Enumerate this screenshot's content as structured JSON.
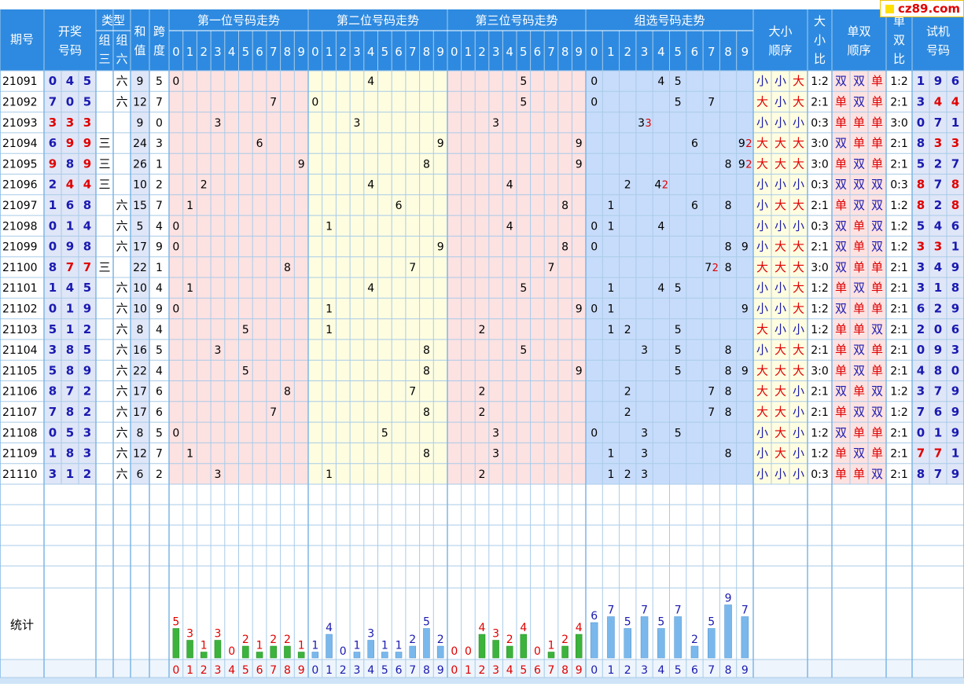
{
  "headers": {
    "issue": "期号",
    "draw": [
      "开奖",
      "号码"
    ],
    "type": "类型",
    "type_group3": [
      "组",
      "三"
    ],
    "type_group6": [
      "组",
      "六"
    ],
    "sum": [
      "和",
      "值"
    ],
    "span": [
      "跨",
      "度"
    ],
    "pos1": "第一位号码走势",
    "pos2": "第二位号码走势",
    "pos3": "第三位号码走势",
    "group": "组选号码走势",
    "bigsmall_order": [
      "大小",
      "顺序"
    ],
    "bigsmall_ratio": [
      "大",
      "小",
      "比"
    ],
    "oddeven_order": [
      "单双",
      "顺序"
    ],
    "oddeven_ratio": [
      "单",
      "双",
      "比"
    ],
    "test": [
      "试机",
      "号码"
    ],
    "digits": [
      "0",
      "1",
      "2",
      "3",
      "4",
      "5",
      "6",
      "7",
      "8",
      "9"
    ]
  },
  "stats_label": "统计",
  "watermark": "cz89.com",
  "colors": {
    "header_bg": "#2e8ae0",
    "draw_bg": "#dfe6f7",
    "pos1_bg": "#fde2e2",
    "pos2_bg": "#fefde0",
    "pos3_bg": "#fde2e2",
    "group_bg": "#c7dcfb",
    "ratio_bg": "#fffde0",
    "test_bg": "#dfe6f7",
    "blue_num": "#1a1ab0",
    "red_num": "#e00000",
    "grid": "#a8cbe8"
  },
  "rows": [
    {
      "issue": "21091",
      "draw": [
        "0",
        "4",
        "5"
      ],
      "type": "六",
      "sum": "9",
      "span": "5",
      "group": [
        {
          "d": "0",
          "c": "1"
        },
        {
          "d": "4",
          "c": "1"
        },
        {
          "d": "5",
          "c": "1"
        }
      ],
      "bs": [
        "小",
        "小",
        "大"
      ],
      "bs_ratio": "1:2",
      "oe": [
        "双",
        "双",
        "单"
      ],
      "oe_ratio": "1:2",
      "test": [
        "1",
        "9",
        "6"
      ]
    },
    {
      "issue": "21092",
      "draw": [
        "7",
        "0",
        "5"
      ],
      "type": "六",
      "sum": "12",
      "span": "7",
      "group": [
        {
          "d": "0",
          "c": "1"
        },
        {
          "d": "5",
          "c": "1"
        },
        {
          "d": "7",
          "c": "1"
        }
      ],
      "bs": [
        "大",
        "小",
        "大"
      ],
      "bs_ratio": "2:1",
      "oe": [
        "单",
        "双",
        "单"
      ],
      "oe_ratio": "2:1",
      "test": [
        "3",
        "4",
        "4"
      ]
    },
    {
      "issue": "21093",
      "draw": [
        "3",
        "3",
        "3"
      ],
      "type": "",
      "sum": "9",
      "span": "0",
      "group": [
        {
          "d": "3",
          "c": "3"
        }
      ],
      "bs": [
        "小",
        "小",
        "小"
      ],
      "bs_ratio": "0:3",
      "oe": [
        "单",
        "单",
        "单"
      ],
      "oe_ratio": "3:0",
      "test": [
        "0",
        "7",
        "1"
      ]
    },
    {
      "issue": "21094",
      "draw": [
        "6",
        "9",
        "9"
      ],
      "type": "三",
      "sum": "24",
      "span": "3",
      "group": [
        {
          "d": "6",
          "c": "1"
        },
        {
          "d": "9",
          "c": "2"
        }
      ],
      "bs": [
        "大",
        "大",
        "大"
      ],
      "bs_ratio": "3:0",
      "oe": [
        "双",
        "单",
        "单"
      ],
      "oe_ratio": "2:1",
      "test": [
        "8",
        "3",
        "3"
      ]
    },
    {
      "issue": "21095",
      "draw": [
        "9",
        "8",
        "9"
      ],
      "type": "三",
      "sum": "26",
      "span": "1",
      "group": [
        {
          "d": "8",
          "c": "1"
        },
        {
          "d": "9",
          "c": "2"
        }
      ],
      "bs": [
        "大",
        "大",
        "大"
      ],
      "bs_ratio": "3:0",
      "oe": [
        "单",
        "双",
        "单"
      ],
      "oe_ratio": "2:1",
      "test": [
        "5",
        "2",
        "7"
      ]
    },
    {
      "issue": "21096",
      "draw": [
        "2",
        "4",
        "4"
      ],
      "type": "三",
      "sum": "10",
      "span": "2",
      "group": [
        {
          "d": "2",
          "c": "1"
        },
        {
          "d": "4",
          "c": "2"
        }
      ],
      "bs": [
        "小",
        "小",
        "小"
      ],
      "bs_ratio": "0:3",
      "oe": [
        "双",
        "双",
        "双"
      ],
      "oe_ratio": "0:3",
      "test": [
        "8",
        "7",
        "8"
      ]
    },
    {
      "issue": "21097",
      "draw": [
        "1",
        "6",
        "8"
      ],
      "type": "六",
      "sum": "15",
      "span": "7",
      "group": [
        {
          "d": "1",
          "c": "1"
        },
        {
          "d": "6",
          "c": "1"
        },
        {
          "d": "8",
          "c": "1"
        }
      ],
      "bs": [
        "小",
        "大",
        "大"
      ],
      "bs_ratio": "2:1",
      "oe": [
        "单",
        "双",
        "双"
      ],
      "oe_ratio": "1:2",
      "test": [
        "8",
        "2",
        "8"
      ]
    },
    {
      "issue": "21098",
      "draw": [
        "0",
        "1",
        "4"
      ],
      "type": "六",
      "sum": "5",
      "span": "4",
      "group": [
        {
          "d": "0",
          "c": "1"
        },
        {
          "d": "1",
          "c": "1"
        },
        {
          "d": "4",
          "c": "1"
        }
      ],
      "bs": [
        "小",
        "小",
        "小"
      ],
      "bs_ratio": "0:3",
      "oe": [
        "双",
        "单",
        "双"
      ],
      "oe_ratio": "1:2",
      "test": [
        "5",
        "4",
        "6"
      ]
    },
    {
      "issue": "21099",
      "draw": [
        "0",
        "9",
        "8"
      ],
      "type": "六",
      "sum": "17",
      "span": "9",
      "group": [
        {
          "d": "0",
          "c": "1"
        },
        {
          "d": "8",
          "c": "1"
        },
        {
          "d": "9",
          "c": "1"
        }
      ],
      "bs": [
        "小",
        "大",
        "大"
      ],
      "bs_ratio": "2:1",
      "oe": [
        "双",
        "单",
        "双"
      ],
      "oe_ratio": "1:2",
      "test": [
        "3",
        "3",
        "1"
      ]
    },
    {
      "issue": "21100",
      "draw": [
        "8",
        "7",
        "7"
      ],
      "type": "三",
      "sum": "22",
      "span": "1",
      "group": [
        {
          "d": "7",
          "c": "2"
        },
        {
          "d": "8",
          "c": "1"
        }
      ],
      "bs": [
        "大",
        "大",
        "大"
      ],
      "bs_ratio": "3:0",
      "oe": [
        "双",
        "单",
        "单"
      ],
      "oe_ratio": "2:1",
      "test": [
        "3",
        "4",
        "9"
      ]
    },
    {
      "issue": "21101",
      "draw": [
        "1",
        "4",
        "5"
      ],
      "type": "六",
      "sum": "10",
      "span": "4",
      "group": [
        {
          "d": "1",
          "c": "1"
        },
        {
          "d": "4",
          "c": "1"
        },
        {
          "d": "5",
          "c": "1"
        }
      ],
      "bs": [
        "小",
        "小",
        "大"
      ],
      "bs_ratio": "1:2",
      "oe": [
        "单",
        "双",
        "单"
      ],
      "oe_ratio": "2:1",
      "test": [
        "3",
        "1",
        "8"
      ]
    },
    {
      "issue": "21102",
      "draw": [
        "0",
        "1",
        "9"
      ],
      "type": "六",
      "sum": "10",
      "span": "9",
      "group": [
        {
          "d": "0",
          "c": "1"
        },
        {
          "d": "1",
          "c": "1"
        },
        {
          "d": "9",
          "c": "1"
        }
      ],
      "bs": [
        "小",
        "小",
        "大"
      ],
      "bs_ratio": "1:2",
      "oe": [
        "双",
        "单",
        "单"
      ],
      "oe_ratio": "2:1",
      "test": [
        "6",
        "2",
        "9"
      ]
    },
    {
      "issue": "21103",
      "draw": [
        "5",
        "1",
        "2"
      ],
      "type": "六",
      "sum": "8",
      "span": "4",
      "group": [
        {
          "d": "1",
          "c": "1"
        },
        {
          "d": "2",
          "c": "1"
        },
        {
          "d": "5",
          "c": "1"
        }
      ],
      "bs": [
        "大",
        "小",
        "小"
      ],
      "bs_ratio": "1:2",
      "oe": [
        "单",
        "单",
        "双"
      ],
      "oe_ratio": "2:1",
      "test": [
        "2",
        "0",
        "6"
      ]
    },
    {
      "issue": "21104",
      "draw": [
        "3",
        "8",
        "5"
      ],
      "type": "六",
      "sum": "16",
      "span": "5",
      "group": [
        {
          "d": "3",
          "c": "1"
        },
        {
          "d": "5",
          "c": "1"
        },
        {
          "d": "8",
          "c": "1"
        }
      ],
      "bs": [
        "小",
        "大",
        "大"
      ],
      "bs_ratio": "2:1",
      "oe": [
        "单",
        "双",
        "单"
      ],
      "oe_ratio": "2:1",
      "test": [
        "0",
        "9",
        "3"
      ]
    },
    {
      "issue": "21105",
      "draw": [
        "5",
        "8",
        "9"
      ],
      "type": "六",
      "sum": "22",
      "span": "4",
      "group": [
        {
          "d": "5",
          "c": "1"
        },
        {
          "d": "8",
          "c": "1"
        },
        {
          "d": "9",
          "c": "1"
        }
      ],
      "bs": [
        "大",
        "大",
        "大"
      ],
      "bs_ratio": "3:0",
      "oe": [
        "单",
        "双",
        "单"
      ],
      "oe_ratio": "2:1",
      "test": [
        "4",
        "8",
        "0"
      ]
    },
    {
      "issue": "21106",
      "draw": [
        "8",
        "7",
        "2"
      ],
      "type": "六",
      "sum": "17",
      "span": "6",
      "group": [
        {
          "d": "2",
          "c": "1"
        },
        {
          "d": "7",
          "c": "1"
        },
        {
          "d": "8",
          "c": "1"
        }
      ],
      "bs": [
        "大",
        "大",
        "小"
      ],
      "bs_ratio": "2:1",
      "oe": [
        "双",
        "单",
        "双"
      ],
      "oe_ratio": "1:2",
      "test": [
        "3",
        "7",
        "9"
      ]
    },
    {
      "issue": "21107",
      "draw": [
        "7",
        "8",
        "2"
      ],
      "type": "六",
      "sum": "17",
      "span": "6",
      "group": [
        {
          "d": "2",
          "c": "1"
        },
        {
          "d": "7",
          "c": "1"
        },
        {
          "d": "8",
          "c": "1"
        }
      ],
      "bs": [
        "大",
        "大",
        "小"
      ],
      "bs_ratio": "2:1",
      "oe": [
        "单",
        "双",
        "双"
      ],
      "oe_ratio": "1:2",
      "test": [
        "7",
        "6",
        "9"
      ]
    },
    {
      "issue": "21108",
      "draw": [
        "0",
        "5",
        "3"
      ],
      "type": "六",
      "sum": "8",
      "span": "5",
      "group": [
        {
          "d": "0",
          "c": "1"
        },
        {
          "d": "3",
          "c": "1"
        },
        {
          "d": "5",
          "c": "1"
        }
      ],
      "bs": [
        "小",
        "大",
        "小"
      ],
      "bs_ratio": "1:2",
      "oe": [
        "双",
        "单",
        "单"
      ],
      "oe_ratio": "2:1",
      "test": [
        "0",
        "1",
        "9"
      ]
    },
    {
      "issue": "21109",
      "draw": [
        "1",
        "8",
        "3"
      ],
      "type": "六",
      "sum": "12",
      "span": "7",
      "group": [
        {
          "d": "1",
          "c": "1"
        },
        {
          "d": "3",
          "c": "1"
        },
        {
          "d": "8",
          "c": "1"
        }
      ],
      "bs": [
        "小",
        "大",
        "小"
      ],
      "bs_ratio": "1:2",
      "oe": [
        "单",
        "双",
        "单"
      ],
      "oe_ratio": "2:1",
      "test": [
        "7",
        "7",
        "1"
      ]
    },
    {
      "issue": "21110",
      "draw": [
        "3",
        "1",
        "2"
      ],
      "type": "六",
      "sum": "6",
      "span": "2",
      "group": [
        {
          "d": "1",
          "c": "1"
        },
        {
          "d": "2",
          "c": "1"
        },
        {
          "d": "3",
          "c": "1"
        }
      ],
      "bs": [
        "小",
        "小",
        "小"
      ],
      "bs_ratio": "0:3",
      "oe": [
        "单",
        "单",
        "双"
      ],
      "oe_ratio": "2:1",
      "test": [
        "8",
        "7",
        "9"
      ]
    }
  ],
  "chart_data": {
    "type": "bar",
    "categories": [
      "0",
      "1",
      "2",
      "3",
      "4",
      "5",
      "6",
      "7",
      "8",
      "9"
    ],
    "series": [
      {
        "name": "第一位号码走势",
        "values": [
          5,
          3,
          1,
          3,
          0,
          2,
          1,
          2,
          2,
          1
        ]
      },
      {
        "name": "第二位号码走势",
        "values": [
          1,
          4,
          0,
          1,
          3,
          1,
          1,
          2,
          5,
          2
        ]
      },
      {
        "name": "第三位号码走势",
        "values": [
          0,
          0,
          4,
          3,
          2,
          4,
          0,
          1,
          2,
          4
        ]
      },
      {
        "name": "组选号码走势",
        "values": [
          6,
          7,
          5,
          7,
          5,
          7,
          2,
          5,
          9,
          7
        ]
      }
    ]
  }
}
